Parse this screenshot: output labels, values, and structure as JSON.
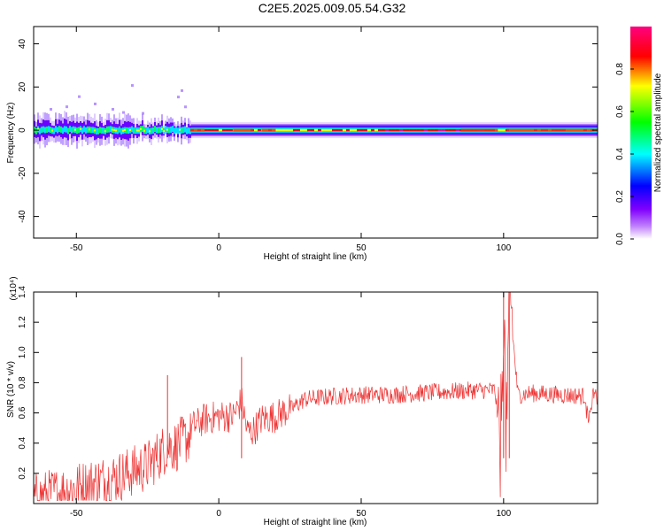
{
  "figure": {
    "title": "C2E5.2025.009.05.54.G32"
  },
  "chart_data": [
    {
      "type": "heatmap",
      "xlabel": "Height of straight line (km)",
      "ylabel": "Frequency (Hz)",
      "xlim": [
        -65,
        133
      ],
      "ylim": [
        -50,
        48
      ],
      "xticks": [
        -50,
        0,
        50,
        100
      ],
      "yticks": [
        -40,
        -20,
        0,
        20,
        40
      ],
      "grid": false,
      "colorbar": {
        "label": "Normalized spectral amplitude",
        "range": [
          0,
          1
        ],
        "ticks": [
          0.0,
          0.2,
          0.4,
          0.6,
          0.8
        ],
        "colors": [
          "#ffffff",
          "#8000ff",
          "#0000ff",
          "#00ffff",
          "#00ff00",
          "#ffff00",
          "#ff0000",
          "#ff0080"
        ]
      },
      "description_band": {
        "center_frequency_hz": 0,
        "noisy_region_km": [
          -65,
          -10
        ],
        "smooth_region_km": [
          -10,
          133
        ]
      }
    },
    {
      "type": "line",
      "xlabel": "Height of straight line (km)",
      "ylabel": "SNR (10 * v/v)",
      "multiplier": "(x10⁴)",
      "xlim": [
        -65,
        133
      ],
      "ylim": [
        0,
        1.4
      ],
      "xticks": [
        -50,
        0,
        50,
        100
      ],
      "yticks": [
        0.2,
        0.4,
        0.6,
        0.8,
        1.0,
        1.2,
        1.4
      ],
      "grid": false,
      "series": [
        {
          "color": "#ee3333",
          "x": [
            -65,
            -55,
            -45,
            -35,
            -25,
            -18,
            -15,
            -10,
            -5,
            0,
            5,
            8,
            10,
            12,
            15,
            20,
            25,
            30,
            40,
            50,
            60,
            70,
            80,
            90,
            97,
            99,
            100,
            101,
            102,
            105,
            110,
            120,
            130,
            133
          ],
          "y": [
            0.1,
            0.15,
            0.2,
            0.25,
            0.32,
            0.45,
            0.45,
            0.52,
            0.58,
            0.6,
            0.6,
            0.7,
            0.5,
            0.5,
            0.58,
            0.6,
            0.65,
            0.72,
            0.74,
            0.75,
            0.75,
            0.76,
            0.77,
            0.78,
            0.78,
            0.4,
            1.4,
            0.35,
            1.4,
            0.75,
            0.76,
            0.75,
            0.74,
            0.73
          ]
        }
      ]
    }
  ]
}
